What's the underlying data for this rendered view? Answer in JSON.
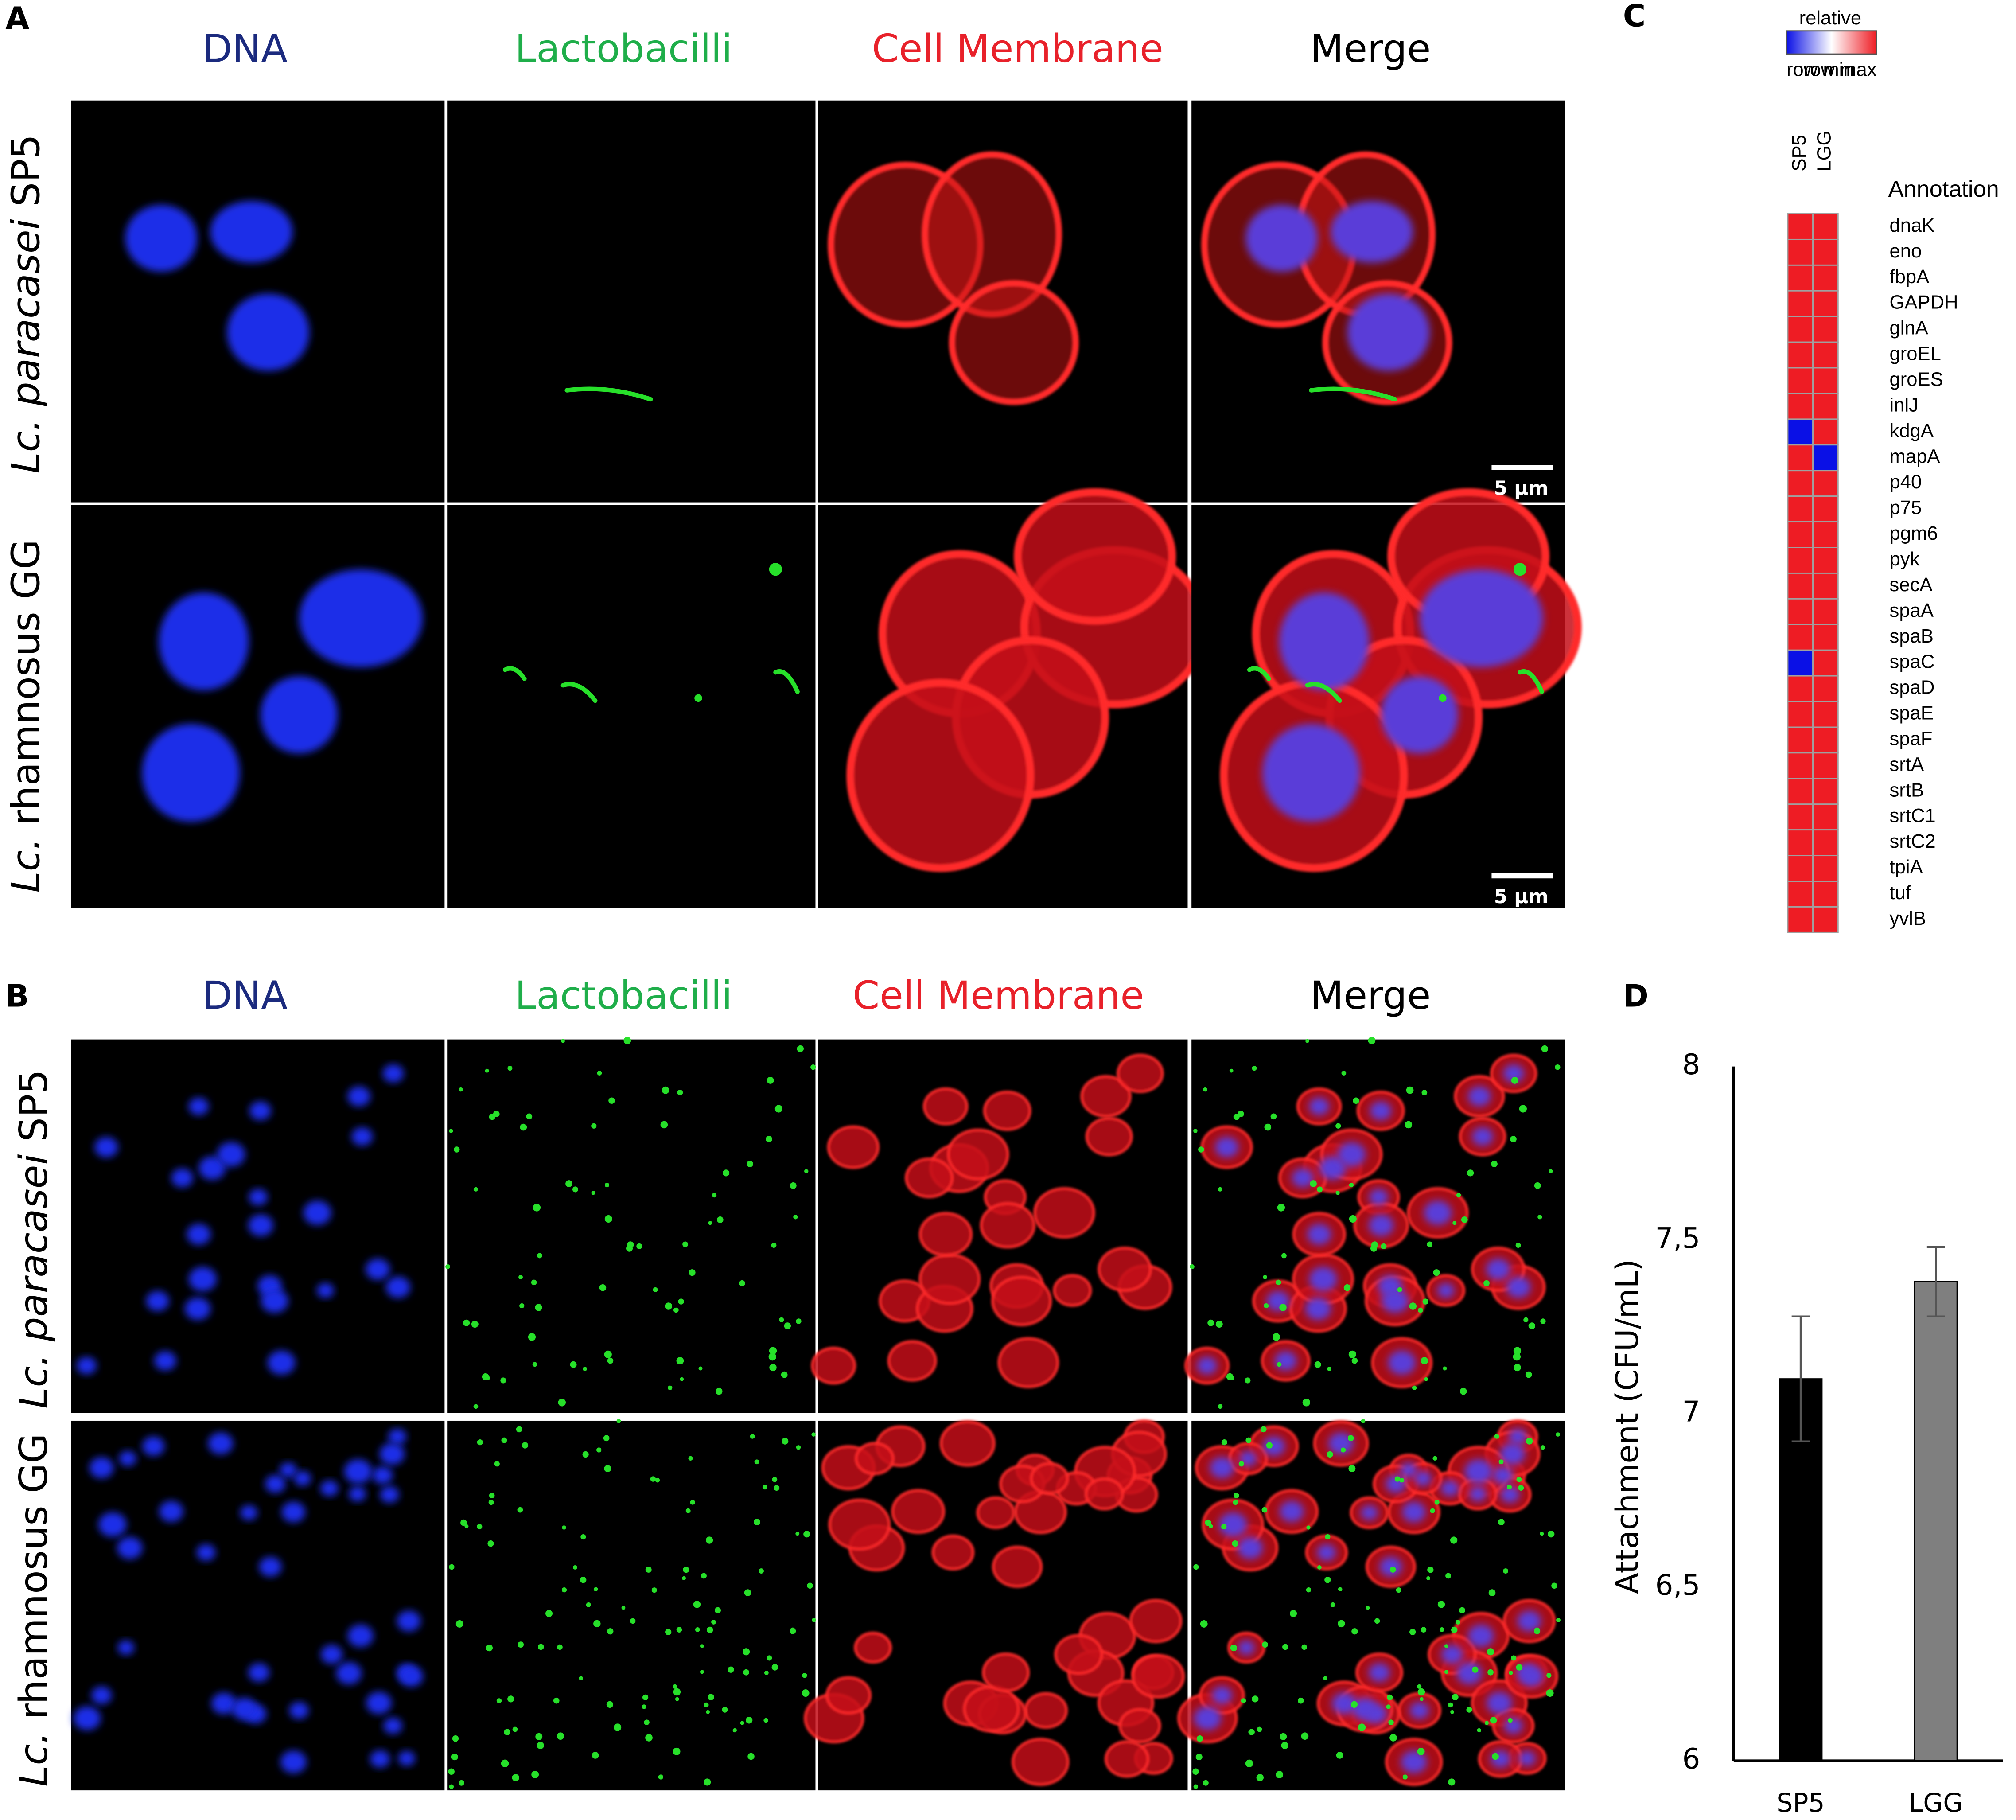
{
  "panel_labels": [
    "A",
    "B",
    "C",
    "D"
  ],
  "panel_a": {
    "columns": [
      "DNA",
      "Lactobacilli",
      "Cell Membrane",
      "Merge"
    ],
    "rows": [
      {
        "italic": "Lc. paracasei",
        "plain": " SP5"
      },
      {
        "italic": "Lc.",
        "plain": " rhamnosus GG"
      }
    ],
    "scale_bars": [
      "5 µm",
      "5 µm"
    ]
  },
  "panel_b": {
    "columns": [
      "DNA",
      "Lactobacilli",
      "Cell Membrane",
      "Merge"
    ],
    "rows": [
      {
        "italic": "Lc. paracasei",
        "plain": " SP5"
      },
      {
        "italic": "Lc.",
        "plain": " rhamnosus GG"
      }
    ]
  },
  "chart_data": [
    {
      "type": "heatmap",
      "legend_title": "relative",
      "legend_min": "row min",
      "legend_max": "row max",
      "min_color": "#0a10e6",
      "max_color": "#ee1c24",
      "columns": [
        "SP5",
        "LGG"
      ],
      "row_header": "Annotation",
      "rows": [
        "dnaK",
        "eno",
        "fbpA",
        "GAPDH",
        "glnA",
        "groEL",
        "groES",
        "inlJ",
        "kdgA",
        "mapA",
        "p40",
        "p75",
        "pgm6",
        "pyk",
        "secA",
        "spaA",
        "spaB",
        "spaC",
        "spaD",
        "spaE",
        "spaF",
        "srtA",
        "srtB",
        "srtC1",
        "srtC2",
        "tpiA",
        "tuf",
        "yvlB"
      ],
      "values": [
        [
          1,
          1
        ],
        [
          1,
          1
        ],
        [
          1,
          1
        ],
        [
          1,
          1
        ],
        [
          1,
          1
        ],
        [
          1,
          1
        ],
        [
          1,
          1
        ],
        [
          1,
          1
        ],
        [
          0,
          1
        ],
        [
          1,
          0
        ],
        [
          1,
          1
        ],
        [
          1,
          1
        ],
        [
          1,
          1
        ],
        [
          1,
          1
        ],
        [
          1,
          1
        ],
        [
          1,
          1
        ],
        [
          1,
          1
        ],
        [
          0,
          1
        ],
        [
          1,
          1
        ],
        [
          1,
          1
        ],
        [
          1,
          1
        ],
        [
          1,
          1
        ],
        [
          1,
          1
        ],
        [
          1,
          1
        ],
        [
          1,
          1
        ],
        [
          1,
          1
        ],
        [
          1,
          1
        ],
        [
          1,
          1
        ]
      ]
    },
    {
      "type": "bar",
      "categories": [
        "SP5",
        "LGG"
      ],
      "values": [
        7.1,
        7.38
      ],
      "errors": [
        0.18,
        0.1
      ],
      "colors": [
        "#000000",
        "#7f7f7f"
      ],
      "ylim": [
        6,
        8
      ],
      "yticks": [
        6,
        {
          "value": 6.5,
          "label": "6,5"
        },
        7,
        {
          "value": 7.5,
          "label": "7,5"
        },
        8
      ],
      "ylabel": "Attachment (CFU/mL)"
    }
  ]
}
